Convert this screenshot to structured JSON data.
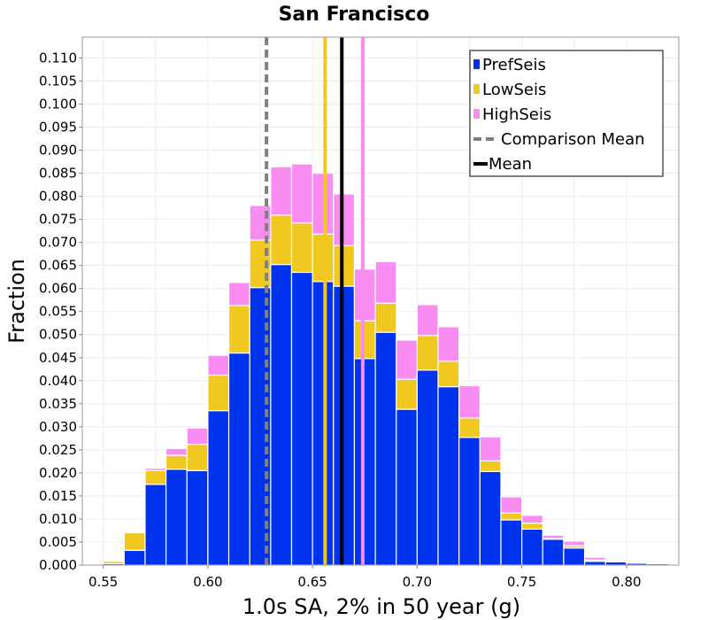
{
  "chart_data": {
    "type": "bar",
    "stacked": true,
    "title": "San Francisco",
    "xlabel": "1.0s SA, 2% in 50 year (g)",
    "ylabel": "Fraction",
    "xlim": [
      0.54,
      0.825
    ],
    "ylim": [
      0.0,
      0.1145
    ],
    "bin_width": 0.01,
    "x_ticks": [
      "0.55",
      "0.60",
      "0.65",
      "0.70",
      "0.75",
      "0.80"
    ],
    "y_ticks": [
      "0.000",
      "0.005",
      "0.010",
      "0.015",
      "0.020",
      "0.025",
      "0.030",
      "0.035",
      "0.040",
      "0.045",
      "0.050",
      "0.055",
      "0.060",
      "0.065",
      "0.070",
      "0.075",
      "0.080",
      "0.085",
      "0.090",
      "0.095",
      "0.100",
      "0.105",
      "0.110"
    ],
    "grid": true,
    "legend_position": "top-right",
    "x": [
      0.555,
      0.565,
      0.575,
      0.585,
      0.595,
      0.605,
      0.615,
      0.625,
      0.635,
      0.645,
      0.655,
      0.665,
      0.675,
      0.685,
      0.695,
      0.705,
      0.715,
      0.725,
      0.735,
      0.745,
      0.755,
      0.765,
      0.775,
      0.785,
      0.795,
      0.805,
      0.815
    ],
    "series": [
      {
        "name": "PrefSeis",
        "color": "#0033ee",
        "values": [
          0.0003,
          0.0032,
          0.0175,
          0.0208,
          0.0205,
          0.0335,
          0.046,
          0.0602,
          0.0652,
          0.0635,
          0.0615,
          0.0605,
          0.0448,
          0.0505,
          0.0338,
          0.0423,
          0.0387,
          0.0277,
          0.0203,
          0.0098,
          0.0078,
          0.0056,
          0.0037,
          0.0008,
          0.0007,
          0.0004,
          0.0003
        ]
      },
      {
        "name": "LowSeis",
        "color": "#f0c820",
        "values": [
          0.0005,
          0.0038,
          0.003,
          0.003,
          0.0057,
          0.0077,
          0.0103,
          0.0103,
          0.0107,
          0.0107,
          0.0103,
          0.0088,
          0.0082,
          0.0063,
          0.0065,
          0.0075,
          0.0055,
          0.0042,
          0.0023,
          0.0015,
          0.0013,
          0.0002,
          0.0005,
          0.0003,
          0.0001,
          0.0001,
          0.0001
        ]
      },
      {
        "name": "HighSeis",
        "color": "#f88cf0",
        "values": [
          0.0,
          0.0,
          0.0005,
          0.0015,
          0.0035,
          0.0043,
          0.005,
          0.0075,
          0.0105,
          0.0128,
          0.0132,
          0.0112,
          0.0112,
          0.009,
          0.0085,
          0.0067,
          0.0075,
          0.007,
          0.0052,
          0.0035,
          0.0017,
          0.0007,
          0.001,
          0.0006,
          0.0002,
          0.0002,
          0.0001
        ]
      }
    ],
    "lines": [
      {
        "name": "Comparison Mean",
        "x": 0.628,
        "color": "#808080",
        "dashed": true
      },
      {
        "name": "Mean",
        "x": 0.664,
        "color": "#000000",
        "dashed": false
      },
      {
        "x": 0.656,
        "color": "#f0c820",
        "dashed": false
      },
      {
        "x": 0.674,
        "color": "#f88cf0",
        "dashed": false
      }
    ]
  }
}
